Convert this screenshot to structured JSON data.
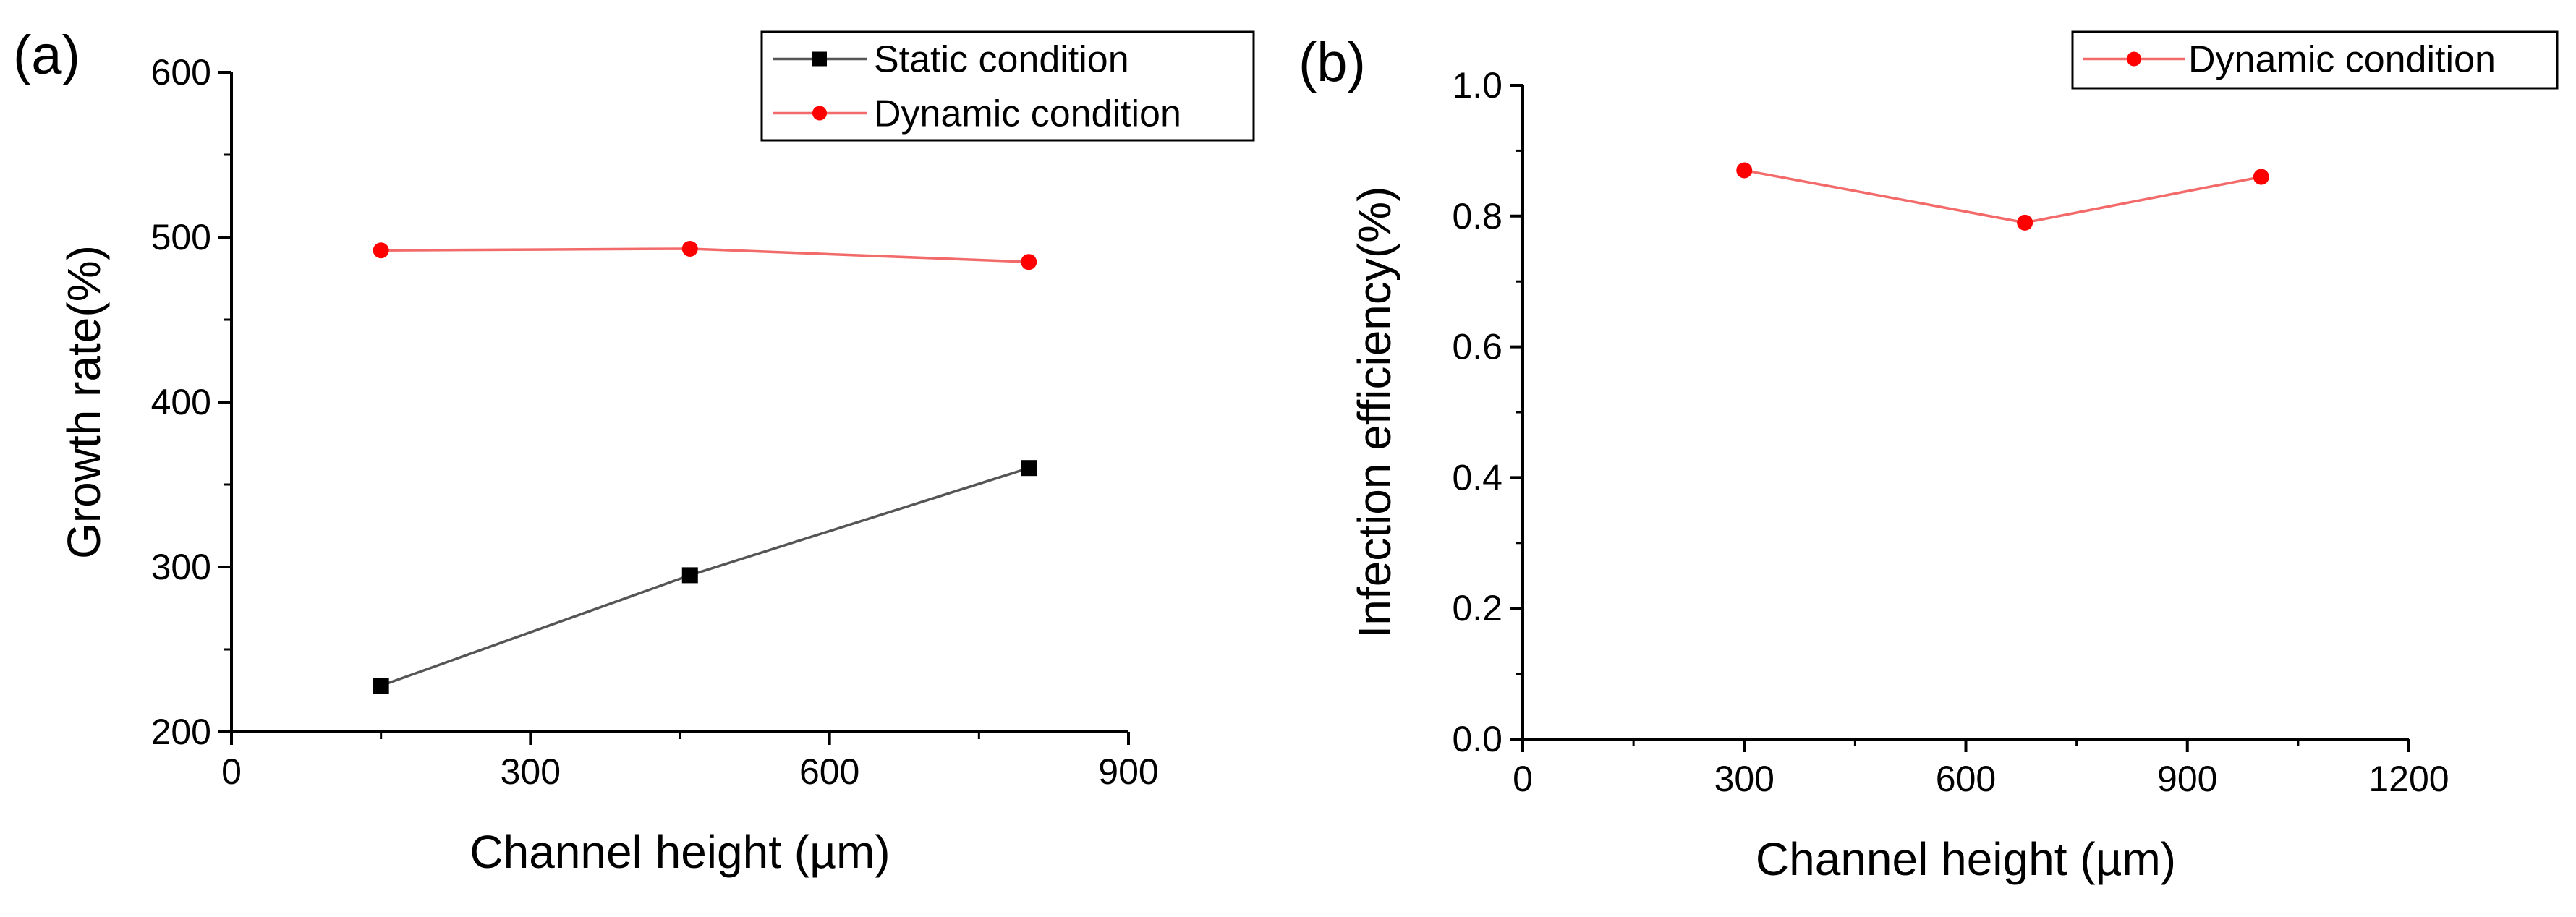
{
  "chart_data": [
    {
      "panel": "(a)",
      "type": "line",
      "xlabel": "Channel height (µm)",
      "ylabel": "Growth rate(%)",
      "xlim": [
        0,
        900
      ],
      "ylim": [
        200,
        600
      ],
      "xticks": [
        0,
        300,
        600,
        900
      ],
      "yticks": [
        200,
        300,
        400,
        500,
        600
      ],
      "x_tick_labels": [
        "0",
        "300",
        "600",
        "900"
      ],
      "y_tick_labels": [
        "200",
        "300",
        "400",
        "500",
        "600"
      ],
      "grid": false,
      "legend_position": "top-right",
      "series": [
        {
          "name": "Static condition",
          "color": "#000000",
          "line_color": "#555555",
          "marker": "square",
          "x": [
            150,
            460,
            800
          ],
          "y": [
            228,
            295,
            360
          ]
        },
        {
          "name": "Dynamic condition",
          "color": "#ff0000",
          "line_color": "#f26a6a",
          "marker": "circle",
          "x": [
            150,
            460,
            800
          ],
          "y": [
            492,
            493,
            485
          ]
        }
      ]
    },
    {
      "panel": "(b)",
      "type": "line",
      "xlabel": "Channel height (µm)",
      "ylabel": "Infection efficiency(%)",
      "xlim": [
        0,
        1200
      ],
      "ylim": [
        0.0,
        1.0
      ],
      "xticks": [
        0,
        300,
        600,
        900,
        1200
      ],
      "yticks": [
        0.0,
        0.2,
        0.4,
        0.6,
        0.8,
        1.0
      ],
      "x_tick_labels": [
        "0",
        "300",
        "600",
        "900",
        "1200"
      ],
      "y_tick_labels": [
        "0.0",
        "0.2",
        "0.4",
        "0.6",
        "0.8",
        "1.0"
      ],
      "grid": false,
      "legend_position": "top-right",
      "series": [
        {
          "name": "Dynamic condition",
          "color": "#ff0000",
          "line_color": "#f26a6a",
          "marker": "circle",
          "x": [
            300,
            680,
            1000
          ],
          "y": [
            0.87,
            0.79,
            0.86
          ]
        }
      ]
    }
  ]
}
